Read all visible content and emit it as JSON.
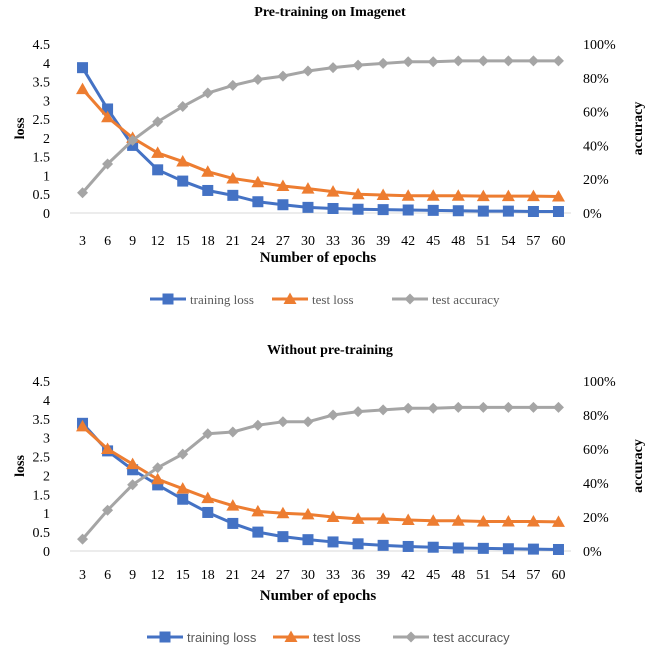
{
  "chart_data": [
    {
      "type": "line",
      "title": "Pre-training on Imagenet",
      "xlabel": "Number of epochs",
      "ylabel": "loss",
      "ylabel_right": "accuracy",
      "x": [
        3,
        6,
        9,
        12,
        15,
        18,
        21,
        24,
        27,
        30,
        33,
        36,
        39,
        42,
        45,
        48,
        51,
        54,
        57,
        60
      ],
      "ylim": [
        0,
        4.5
      ],
      "yticks": [
        "0",
        "0.5",
        "1",
        "1.5",
        "2",
        "2.5",
        "3",
        "3.5",
        "4",
        "4.5"
      ],
      "ylim_right": [
        0,
        1
      ],
      "yticks_right": [
        "0%",
        "20%",
        "40%",
        "60%",
        "80%",
        "100%"
      ],
      "legend_position": "bottom",
      "legend_font": "serif",
      "grid": false,
      "series": [
        {
          "name": "training loss",
          "axis": "left",
          "marker": "square",
          "color": "#4472C4",
          "values": [
            3.87,
            2.77,
            1.8,
            1.15,
            0.85,
            0.6,
            0.47,
            0.3,
            0.22,
            0.15,
            0.12,
            0.1,
            0.09,
            0.08,
            0.07,
            0.06,
            0.05,
            0.05,
            0.04,
            0.04
          ]
        },
        {
          "name": "test loss",
          "axis": "left",
          "marker": "triangle",
          "color": "#ED7D31",
          "values": [
            3.3,
            2.55,
            2.0,
            1.6,
            1.37,
            1.1,
            0.92,
            0.82,
            0.72,
            0.65,
            0.57,
            0.5,
            0.48,
            0.46,
            0.46,
            0.46,
            0.45,
            0.45,
            0.45,
            0.44
          ]
        },
        {
          "name": "test accuracy",
          "axis": "right",
          "marker": "diamond",
          "color": "#A5A5A5",
          "values": [
            0.12,
            0.29,
            0.43,
            0.54,
            0.63,
            0.71,
            0.755,
            0.79,
            0.81,
            0.84,
            0.86,
            0.875,
            0.885,
            0.895,
            0.895,
            0.9,
            0.9,
            0.9,
            0.9,
            0.9
          ]
        }
      ]
    },
    {
      "type": "line",
      "title": "Without pre-training",
      "xlabel": "Number of epochs",
      "ylabel": "loss",
      "ylabel_right": "accuracy",
      "x": [
        3,
        6,
        9,
        12,
        15,
        18,
        21,
        24,
        27,
        30,
        33,
        36,
        39,
        42,
        45,
        48,
        51,
        54,
        57,
        60
      ],
      "ylim": [
        0,
        4.5
      ],
      "yticks": [
        "0",
        "0.5",
        "1",
        "1.5",
        "2",
        "2.5",
        "3",
        "3.5",
        "4",
        "4.5"
      ],
      "ylim_right": [
        0,
        1
      ],
      "yticks_right": [
        "0%",
        "20%",
        "40%",
        "60%",
        "80%",
        "100%"
      ],
      "legend_position": "bottom",
      "legend_font": "sans",
      "grid": false,
      "series": [
        {
          "name": "training loss",
          "axis": "left",
          "marker": "square",
          "color": "#4472C4",
          "values": [
            3.38,
            2.65,
            2.15,
            1.75,
            1.37,
            1.02,
            0.73,
            0.5,
            0.38,
            0.3,
            0.24,
            0.19,
            0.15,
            0.12,
            0.1,
            0.08,
            0.07,
            0.06,
            0.05,
            0.04
          ]
        },
        {
          "name": "test loss",
          "axis": "left",
          "marker": "triangle",
          "color": "#ED7D31",
          "values": [
            3.3,
            2.7,
            2.3,
            1.9,
            1.65,
            1.4,
            1.2,
            1.05,
            1.0,
            0.97,
            0.9,
            0.85,
            0.85,
            0.82,
            0.8,
            0.8,
            0.78,
            0.78,
            0.78,
            0.77
          ]
        },
        {
          "name": "test accuracy",
          "axis": "right",
          "marker": "diamond",
          "color": "#A5A5A5",
          "values": [
            0.07,
            0.24,
            0.39,
            0.49,
            0.57,
            0.69,
            0.7,
            0.74,
            0.76,
            0.76,
            0.8,
            0.82,
            0.83,
            0.84,
            0.84,
            0.845,
            0.845,
            0.845,
            0.845,
            0.845
          ]
        }
      ]
    }
  ]
}
